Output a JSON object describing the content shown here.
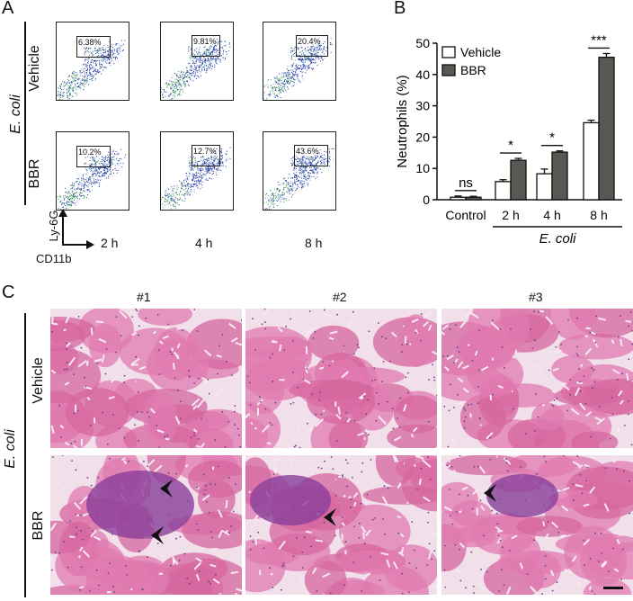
{
  "panel_a": {
    "letter": "A",
    "ecoli_label": "E. coli",
    "row_labels": [
      "Vehicle",
      "BBR"
    ],
    "gate_values": [
      [
        "6.38%",
        "9.81%",
        "20.4%"
      ],
      [
        "10.2%",
        "12.7%",
        "43.6%"
      ]
    ],
    "time_labels": [
      "2 h",
      "4 h",
      "8 h"
    ],
    "y_axis_marker": "Ly-6G",
    "x_axis_marker": "CD11b"
  },
  "panel_b": {
    "letter": "B",
    "ecoli_label": "E. coli"
  },
  "panel_c": {
    "letter": "C",
    "ecoli_label": "E. coli",
    "column_labels": [
      "#1",
      "#2",
      "#3"
    ],
    "row_labels": [
      "Vehicle",
      "BBR"
    ]
  },
  "chart_data": {
    "type": "bar",
    "categories": [
      "Control",
      "2 h",
      "4 h",
      "8 h"
    ],
    "series": [
      {
        "name": "Vehicle",
        "values": [
          0.8,
          5.8,
          8.3,
          24.6
        ],
        "errors": [
          0.4,
          0.6,
          1.5,
          0.8
        ],
        "color": "#ffffff"
      },
      {
        "name": "BBR",
        "values": [
          0.8,
          12.6,
          15.2,
          45.5
        ],
        "errors": [
          0.3,
          0.6,
          0.4,
          1.2
        ],
        "color": "#555a52"
      }
    ],
    "ylabel": "Neutrophils (%)",
    "ylim": [
      0,
      50
    ],
    "yticks": [
      0,
      10,
      20,
      30,
      40,
      50
    ],
    "significance": [
      "ns",
      "*",
      "*",
      "***"
    ],
    "legend_position": "top-left",
    "group_label": "E. coli"
  }
}
